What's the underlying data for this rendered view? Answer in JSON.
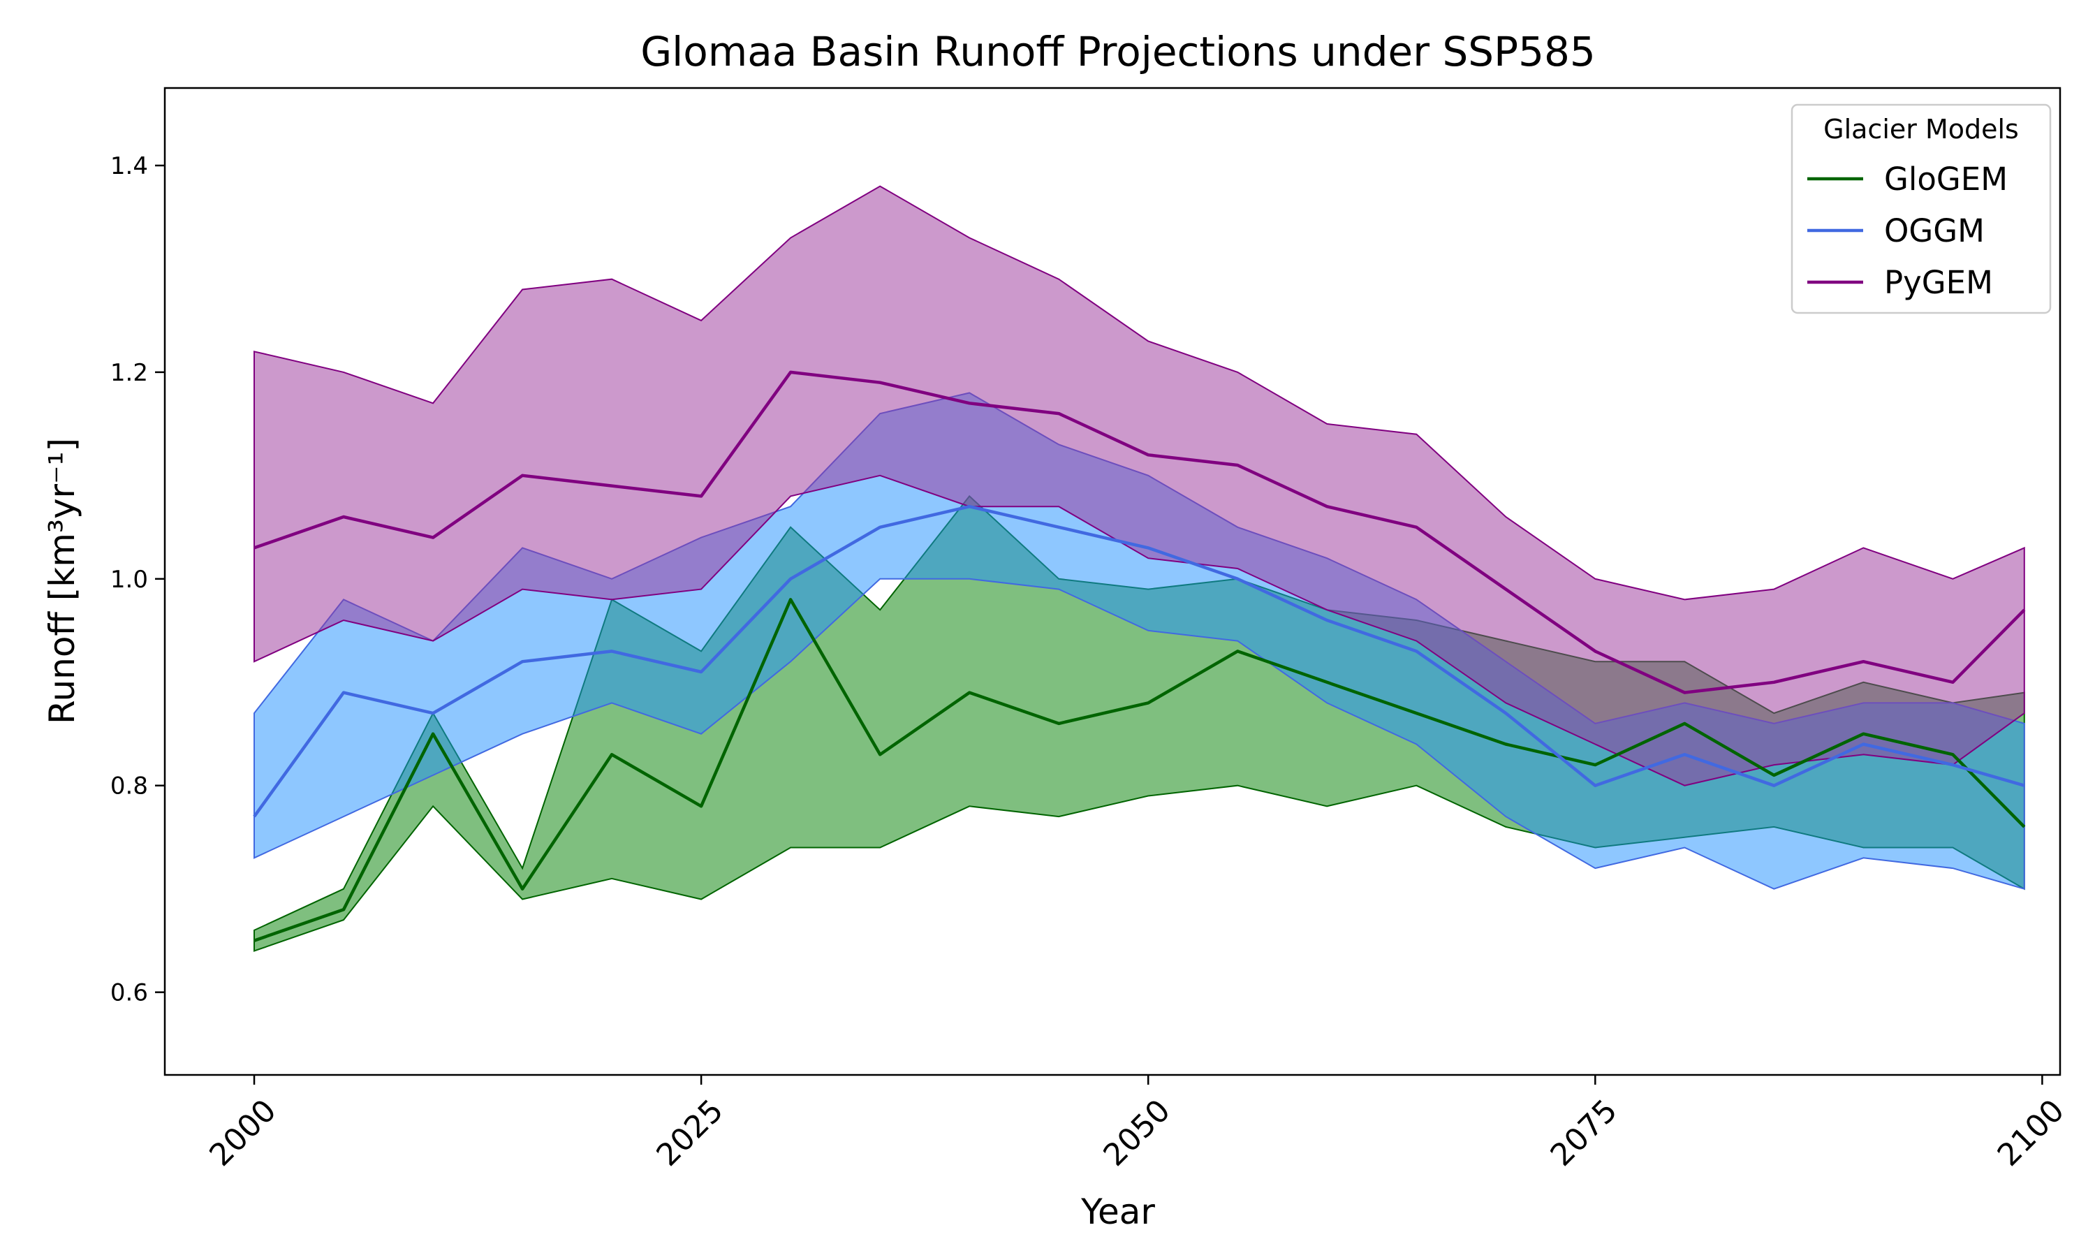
{
  "chart_data": {
    "type": "line",
    "title": "Glomaa Basin Runoff Projections under SSP585",
    "xlabel": "Year",
    "ylabel": "Runoff [km³yr⁻¹]",
    "xlim": [
      1995,
      2101
    ],
    "ylim": [
      0.52,
      1.475
    ],
    "xticks": [
      2000,
      2025,
      2050,
      2075,
      2100
    ],
    "yticks": [
      0.6,
      0.8,
      1.0,
      1.2,
      1.4
    ],
    "ytick_labels": [
      "0.6",
      "0.8",
      "1.0",
      "1.2",
      "1.4"
    ],
    "grid": false,
    "legend": {
      "title": "Glacier Models",
      "position": "top-right"
    },
    "x": [
      2000,
      2005,
      2010,
      2015,
      2020,
      2025,
      2030,
      2035,
      2040,
      2045,
      2050,
      2055,
      2060,
      2065,
      2070,
      2075,
      2080,
      2085,
      2090,
      2095,
      2099
    ],
    "series": [
      {
        "name": "GloGEM",
        "color": "#006400",
        "band_color": "#008000",
        "mean": [
          0.65,
          0.68,
          0.85,
          0.7,
          0.83,
          0.78,
          0.98,
          0.83,
          0.89,
          0.86,
          0.88,
          0.93,
          0.9,
          0.87,
          0.84,
          0.82,
          0.86,
          0.81,
          0.85,
          0.83,
          0.76
        ],
        "lower": [
          0.64,
          0.67,
          0.78,
          0.69,
          0.71,
          0.69,
          0.74,
          0.74,
          0.78,
          0.77,
          0.79,
          0.8,
          0.78,
          0.8,
          0.76,
          0.74,
          0.75,
          0.76,
          0.74,
          0.74,
          0.7
        ],
        "upper": [
          0.66,
          0.7,
          0.87,
          0.72,
          0.98,
          0.93,
          1.05,
          0.97,
          1.08,
          1.0,
          0.99,
          1.0,
          0.97,
          0.96,
          0.94,
          0.92,
          0.92,
          0.87,
          0.9,
          0.88,
          0.89
        ]
      },
      {
        "name": "OGGM",
        "color": "#4169E1",
        "band_color": "#1E90FF",
        "mean": [
          0.77,
          0.89,
          0.87,
          0.92,
          0.93,
          0.91,
          1.0,
          1.05,
          1.07,
          1.05,
          1.03,
          1.0,
          0.96,
          0.93,
          0.87,
          0.8,
          0.83,
          0.8,
          0.84,
          0.82,
          0.8
        ],
        "lower": [
          0.73,
          0.77,
          0.81,
          0.85,
          0.88,
          0.85,
          0.92,
          1.0,
          1.0,
          0.99,
          0.95,
          0.94,
          0.88,
          0.84,
          0.77,
          0.72,
          0.74,
          0.7,
          0.73,
          0.72,
          0.7
        ],
        "upper": [
          0.87,
          0.98,
          0.94,
          1.03,
          1.0,
          1.04,
          1.07,
          1.16,
          1.18,
          1.13,
          1.1,
          1.05,
          1.02,
          0.98,
          0.92,
          0.86,
          0.88,
          0.86,
          0.88,
          0.88,
          0.86
        ]
      },
      {
        "name": "PyGEM",
        "color": "#800080",
        "band_color": "#993399",
        "mean": [
          1.03,
          1.06,
          1.04,
          1.1,
          1.09,
          1.08,
          1.2,
          1.19,
          1.17,
          1.16,
          1.12,
          1.11,
          1.07,
          1.05,
          0.99,
          0.93,
          0.89,
          0.9,
          0.92,
          0.9,
          0.97
        ],
        "lower": [
          0.92,
          0.96,
          0.94,
          0.99,
          0.98,
          0.99,
          1.08,
          1.1,
          1.07,
          1.07,
          1.02,
          1.01,
          0.97,
          0.94,
          0.88,
          0.84,
          0.8,
          0.82,
          0.83,
          0.82,
          0.87
        ],
        "upper": [
          1.22,
          1.2,
          1.17,
          1.28,
          1.29,
          1.25,
          1.33,
          1.38,
          1.33,
          1.29,
          1.23,
          1.2,
          1.15,
          1.14,
          1.06,
          1.0,
          0.98,
          0.99,
          1.03,
          1.0,
          1.03
        ]
      }
    ]
  }
}
